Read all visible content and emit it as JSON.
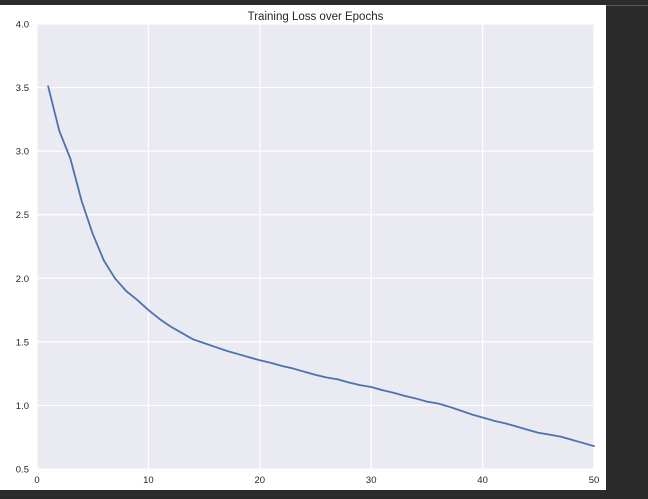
{
  "chart_data": {
    "type": "line",
    "title": "Training Loss over Epochs",
    "xlabel": "",
    "ylabel": "",
    "xlim": [
      0,
      50
    ],
    "ylim": [
      0.5,
      4.0
    ],
    "xticks": [
      0,
      10,
      20,
      30,
      40,
      50
    ],
    "xtick_labels": [
      "0",
      "10",
      "20",
      "30",
      "40",
      "50"
    ],
    "yticks": [
      0.5,
      1.0,
      1.5,
      2.0,
      2.5,
      3.0,
      3.5,
      4.0
    ],
    "ytick_labels": [
      "0.5",
      "1.0",
      "1.5",
      "2.0",
      "2.5",
      "3.0",
      "3.5",
      "4.0"
    ],
    "grid": true,
    "legend": "none",
    "background_color": "#eaeaf2",
    "grid_color": "#ffffff",
    "series": [
      {
        "color": "#4c72b0",
        "x": [
          1,
          2,
          3,
          4,
          5,
          6,
          7,
          8,
          9,
          10,
          11,
          12,
          13,
          14,
          15,
          16,
          17,
          18,
          19,
          20,
          21,
          22,
          23,
          24,
          25,
          26,
          27,
          28,
          29,
          30,
          31,
          32,
          33,
          34,
          35,
          36,
          37,
          38,
          39,
          40,
          41,
          42,
          43,
          44,
          45,
          46,
          47,
          48,
          49,
          50
        ],
        "y": [
          3.51,
          3.16,
          2.94,
          2.61,
          2.35,
          2.14,
          2.0,
          1.9,
          1.83,
          1.75,
          1.68,
          1.62,
          1.57,
          1.52,
          1.49,
          1.46,
          1.43,
          1.405,
          1.38,
          1.355,
          1.335,
          1.31,
          1.29,
          1.265,
          1.24,
          1.22,
          1.205,
          1.18,
          1.16,
          1.145,
          1.12,
          1.1,
          1.075,
          1.055,
          1.03,
          1.015,
          0.99,
          0.96,
          0.93,
          0.905,
          0.88,
          0.86,
          0.835,
          0.81,
          0.785,
          0.77,
          0.755,
          0.73,
          0.705,
          0.68
        ]
      }
    ]
  }
}
